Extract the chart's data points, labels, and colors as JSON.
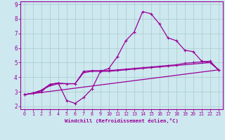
{
  "xlabel": "Windchill (Refroidissement éolien,°C)",
  "xlim": [
    -0.5,
    23.5
  ],
  "ylim": [
    1.8,
    9.2
  ],
  "xticks": [
    0,
    1,
    2,
    3,
    4,
    5,
    6,
    7,
    8,
    9,
    10,
    11,
    12,
    13,
    14,
    15,
    16,
    17,
    18,
    19,
    20,
    21,
    22,
    23
  ],
  "yticks": [
    2,
    3,
    4,
    5,
    6,
    7,
    8,
    9
  ],
  "bg_color": "#cde8ef",
  "line_color": "#990099",
  "grid_color": "#aacccc",
  "series": {
    "curve1_x": [
      0,
      1,
      2,
      3,
      4,
      5,
      6,
      7,
      8,
      9,
      10,
      11,
      12,
      13,
      14,
      15,
      16,
      17,
      18,
      19,
      20,
      21,
      22,
      23
    ],
    "curve1_y": [
      2.8,
      2.9,
      3.0,
      3.5,
      3.6,
      2.4,
      2.2,
      2.6,
      3.2,
      4.4,
      4.6,
      5.4,
      6.5,
      7.1,
      8.5,
      8.35,
      7.65,
      6.7,
      6.5,
      5.85,
      5.75,
      5.1,
      5.0,
      4.5
    ],
    "curve2_x": [
      0,
      1,
      2,
      3,
      4,
      5,
      6,
      7,
      8,
      9,
      10,
      11,
      12,
      13,
      14,
      15,
      16,
      17,
      18,
      19,
      20,
      21,
      22,
      23
    ],
    "curve2_y": [
      2.8,
      2.9,
      3.1,
      3.5,
      3.6,
      3.55,
      3.55,
      4.4,
      4.45,
      4.45,
      4.45,
      4.5,
      4.55,
      4.6,
      4.65,
      4.7,
      4.75,
      4.8,
      4.85,
      4.95,
      5.0,
      5.05,
      5.1,
      4.5
    ],
    "curve3_x": [
      0,
      1,
      2,
      3,
      4,
      5,
      6,
      7,
      8,
      9,
      10,
      11,
      12,
      13,
      14,
      15,
      16,
      17,
      18,
      19,
      20,
      21,
      22,
      23
    ],
    "curve3_y": [
      2.8,
      2.9,
      3.1,
      3.4,
      3.55,
      3.55,
      3.55,
      4.3,
      4.4,
      4.4,
      4.4,
      4.45,
      4.5,
      4.55,
      4.6,
      4.65,
      4.7,
      4.75,
      4.8,
      4.85,
      4.9,
      4.95,
      5.0,
      4.5
    ],
    "curve4_x": [
      0,
      23
    ],
    "curve4_y": [
      2.8,
      4.5
    ]
  }
}
